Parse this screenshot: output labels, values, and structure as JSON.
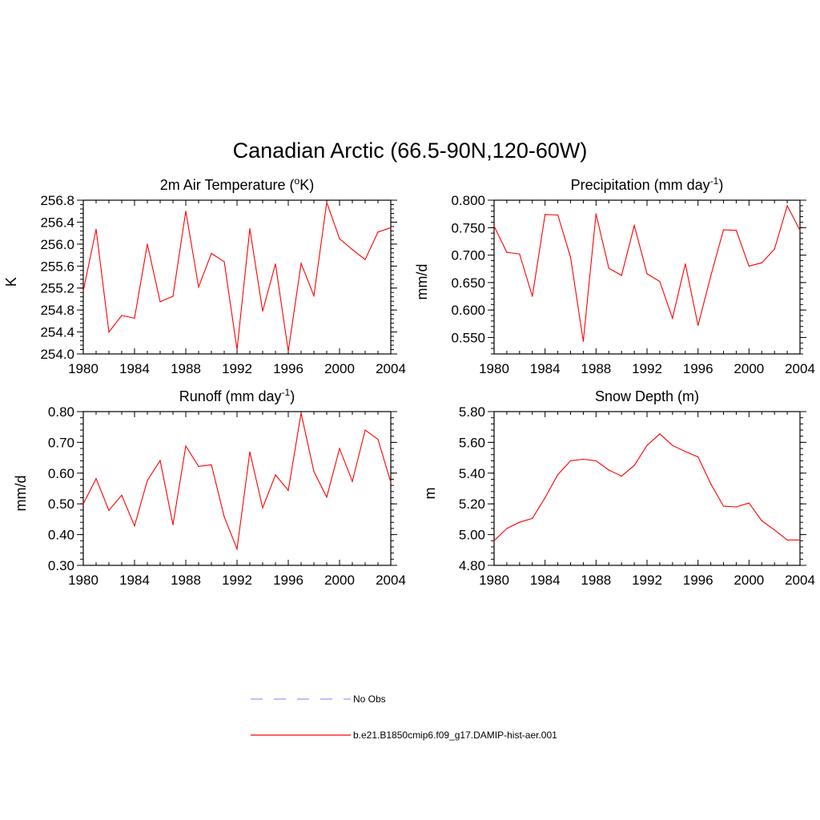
{
  "title": "Canadian Arctic (66.5-90N,120-60W)",
  "colors": {
    "series": "#ff0000",
    "obs": "#9999ff",
    "axis": "#000000"
  },
  "legend": [
    {
      "label": "No Obs",
      "color": "#9999ff",
      "style": "dashed"
    },
    {
      "label": "b.e21.B1850cmip6.f09_g17.DAMIP-hist-aer.001",
      "color": "#ff0000",
      "style": "solid"
    }
  ],
  "chart_data": [
    {
      "type": "line",
      "title": "2m Air Temperature (°K)",
      "title_parts": [
        "2m Air Temperature (",
        "o",
        "K)"
      ],
      "ylabel": "K",
      "xlim": [
        1980,
        2004
      ],
      "ylim": [
        254.0,
        256.8
      ],
      "xticks": [
        "1980",
        "1984",
        "1988",
        "1992",
        "1996",
        "2000",
        "2004"
      ],
      "yticks": [
        "254.0",
        "254.4",
        "254.8",
        "255.2",
        "255.6",
        "256.0",
        "256.4",
        "256.8"
      ],
      "series": [
        {
          "x": [
            1980,
            1981,
            1982,
            1983,
            1984,
            1985,
            1986,
            1987,
            1988,
            1989,
            1990,
            1991,
            1992,
            1993,
            1994,
            1995,
            1996,
            1997,
            1998,
            1999,
            2000,
            2001,
            2002,
            2003,
            2004
          ],
          "values": [
            255.15,
            256.27,
            254.4,
            254.7,
            254.65,
            256.0,
            254.95,
            255.05,
            256.6,
            255.22,
            255.83,
            255.68,
            254.08,
            256.28,
            254.78,
            255.64,
            254.05,
            255.65,
            255.06,
            256.76,
            256.1,
            255.9,
            255.72,
            256.22,
            256.3
          ]
        }
      ]
    },
    {
      "type": "line",
      "title": "Precipitation (mm day-1)",
      "title_parts": [
        "Precipitation (mm day",
        "-1",
        ")"
      ],
      "ylabel": "mm/d",
      "xlim": [
        1980,
        2004
      ],
      "ylim": [
        0.52,
        0.8
      ],
      "xticks": [
        "1980",
        "1984",
        "1988",
        "1992",
        "1996",
        "2000",
        "2004"
      ],
      "yticks": [
        "0.550",
        "0.600",
        "0.650",
        "0.700",
        "0.750",
        "0.800"
      ],
      "series": [
        {
          "x": [
            1980,
            1981,
            1982,
            1983,
            1984,
            1985,
            1986,
            1987,
            1988,
            1989,
            1990,
            1991,
            1992,
            1993,
            1994,
            1995,
            1996,
            1997,
            1998,
            1999,
            2000,
            2001,
            2002,
            2003,
            2004
          ],
          "values": [
            0.753,
            0.705,
            0.702,
            0.625,
            0.774,
            0.773,
            0.696,
            0.543,
            0.775,
            0.676,
            0.663,
            0.754,
            0.666,
            0.652,
            0.585,
            0.684,
            0.572,
            0.662,
            0.746,
            0.745,
            0.68,
            0.686,
            0.711,
            0.79,
            0.745
          ]
        }
      ]
    },
    {
      "type": "line",
      "title": "Runoff (mm day-1)",
      "title_parts": [
        "Runoff (mm day",
        "-1",
        ")"
      ],
      "ylabel": "mm/d",
      "xlim": [
        1980,
        2004
      ],
      "ylim": [
        0.3,
        0.8
      ],
      "xticks": [
        "1980",
        "1984",
        "1988",
        "1992",
        "1996",
        "2000",
        "2004"
      ],
      "yticks": [
        "0.30",
        "0.40",
        "0.50",
        "0.60",
        "0.70",
        "0.80"
      ],
      "series": [
        {
          "x": [
            1980,
            1981,
            1982,
            1983,
            1984,
            1985,
            1986,
            1987,
            1988,
            1989,
            1990,
            1991,
            1992,
            1993,
            1994,
            1995,
            1996,
            1997,
            1998,
            1999,
            2000,
            2001,
            2002,
            2003,
            2004
          ],
          "values": [
            0.5,
            0.582,
            0.479,
            0.528,
            0.428,
            0.576,
            0.641,
            0.432,
            0.688,
            0.622,
            0.627,
            0.458,
            0.353,
            0.669,
            0.487,
            0.594,
            0.544,
            0.795,
            0.605,
            0.522,
            0.68,
            0.573,
            0.74,
            0.71,
            0.57
          ]
        }
      ]
    },
    {
      "type": "line",
      "title": "Snow Depth (m)",
      "title_parts": [
        "Snow Depth (m)",
        "",
        ""
      ],
      "ylabel": "m",
      "xlim": [
        1980,
        2004
      ],
      "ylim": [
        4.8,
        5.8
      ],
      "xticks": [
        "1980",
        "1984",
        "1988",
        "1992",
        "1996",
        "2000",
        "2004"
      ],
      "yticks": [
        "4.80",
        "5.00",
        "5.20",
        "5.40",
        "5.60",
        "5.80"
      ],
      "series": [
        {
          "x": [
            1980,
            1981,
            1982,
            1983,
            1984,
            1985,
            1986,
            1987,
            1988,
            1989,
            1990,
            1991,
            1992,
            1993,
            1994,
            1995,
            1996,
            1997,
            1998,
            1999,
            2000,
            2001,
            2002,
            2003,
            2004
          ],
          "values": [
            4.96,
            5.04,
            5.08,
            5.105,
            5.24,
            5.39,
            5.48,
            5.49,
            5.48,
            5.42,
            5.38,
            5.45,
            5.58,
            5.655,
            5.58,
            5.54,
            5.505,
            5.33,
            5.185,
            5.18,
            5.205,
            5.09,
            5.03,
            4.965,
            4.965
          ]
        }
      ]
    }
  ]
}
